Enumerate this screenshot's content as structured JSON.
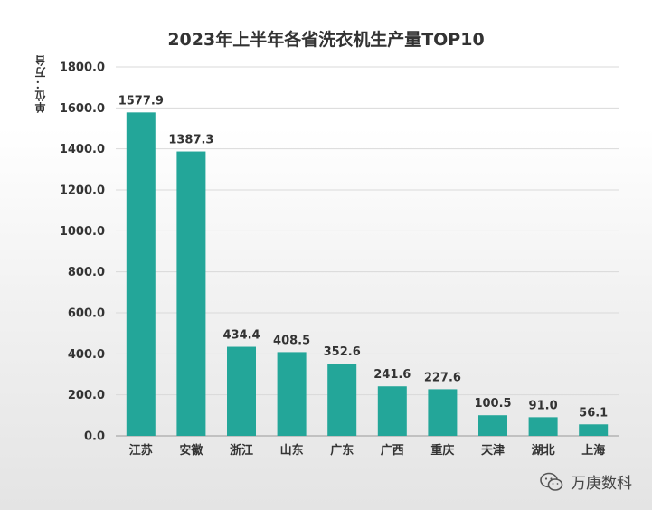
{
  "chart_data": {
    "type": "bar",
    "title": "2023年上半年各省洗衣机生产量TOP10",
    "ylabel": "单位：万台",
    "xlabel": "",
    "categories": [
      "江苏",
      "安徽",
      "浙江",
      "山东",
      "广东",
      "广西",
      "重庆",
      "天津",
      "湖北",
      "上海"
    ],
    "values": [
      1577.9,
      1387.3,
      434.4,
      408.5,
      352.6,
      241.6,
      227.6,
      100.5,
      91.0,
      56.1
    ],
    "value_labels": [
      "1577.9",
      "1387.3",
      "434.4",
      "408.5",
      "352.6",
      "241.6",
      "227.6",
      "100.5",
      "91.0",
      "56.1"
    ],
    "yticks": [
      0,
      200,
      400,
      600,
      800,
      1000,
      1200,
      1400,
      1600,
      1800
    ],
    "ytick_labels": [
      "0.0",
      "200.0",
      "400.0",
      "600.0",
      "800.0",
      "1000.0",
      "1200.0",
      "1400.0",
      "1600.0",
      "1800.0"
    ],
    "ylim": [
      0,
      1800
    ],
    "grid": true,
    "bar_color": "#23a699"
  },
  "watermark": {
    "text": "万庚数科",
    "icon": "wechat-icon"
  }
}
